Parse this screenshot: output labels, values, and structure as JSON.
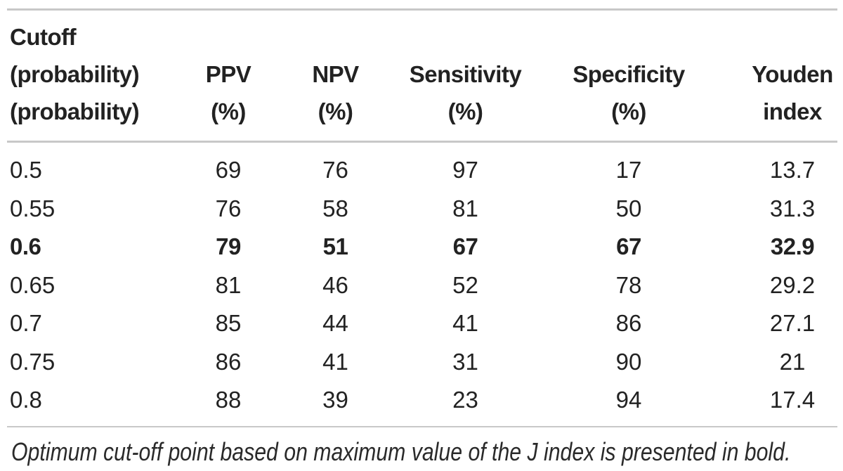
{
  "chart_data": {
    "type": "table",
    "header_lines": [
      [
        "Cutoff",
        "",
        "",
        "",
        "",
        ""
      ],
      [
        "(probability)",
        "PPV",
        "NPV",
        "Sensitivity",
        "Specificity",
        "Youden"
      ],
      [
        "(probability)",
        "(%)",
        "(%)",
        "(%)",
        "(%)",
        "index"
      ]
    ],
    "columns": [
      "Cutoff (probability)",
      "PPV (%)",
      "NPV (%)",
      "Sensitivity (%)",
      "Specificity (%)",
      "Youden index"
    ],
    "rows": [
      [
        0.5,
        69,
        76,
        97,
        17,
        13.7
      ],
      [
        0.55,
        76,
        58,
        81,
        50,
        31.3
      ],
      [
        0.6,
        79,
        51,
        67,
        67,
        32.9
      ],
      [
        0.65,
        81,
        46,
        52,
        78,
        29.2
      ],
      [
        0.7,
        85,
        44,
        41,
        86,
        27.1
      ],
      [
        0.75,
        86,
        41,
        31,
        90,
        21
      ],
      [
        0.8,
        88,
        39,
        23,
        94,
        17.4
      ]
    ],
    "bold_row_index": 2,
    "footnote": "Optimum cut-off point based on maximum value of the J index is presented in bold."
  },
  "colors": {
    "text": "#222222",
    "rule": "#c8c8c8",
    "background": "#ffffff"
  }
}
